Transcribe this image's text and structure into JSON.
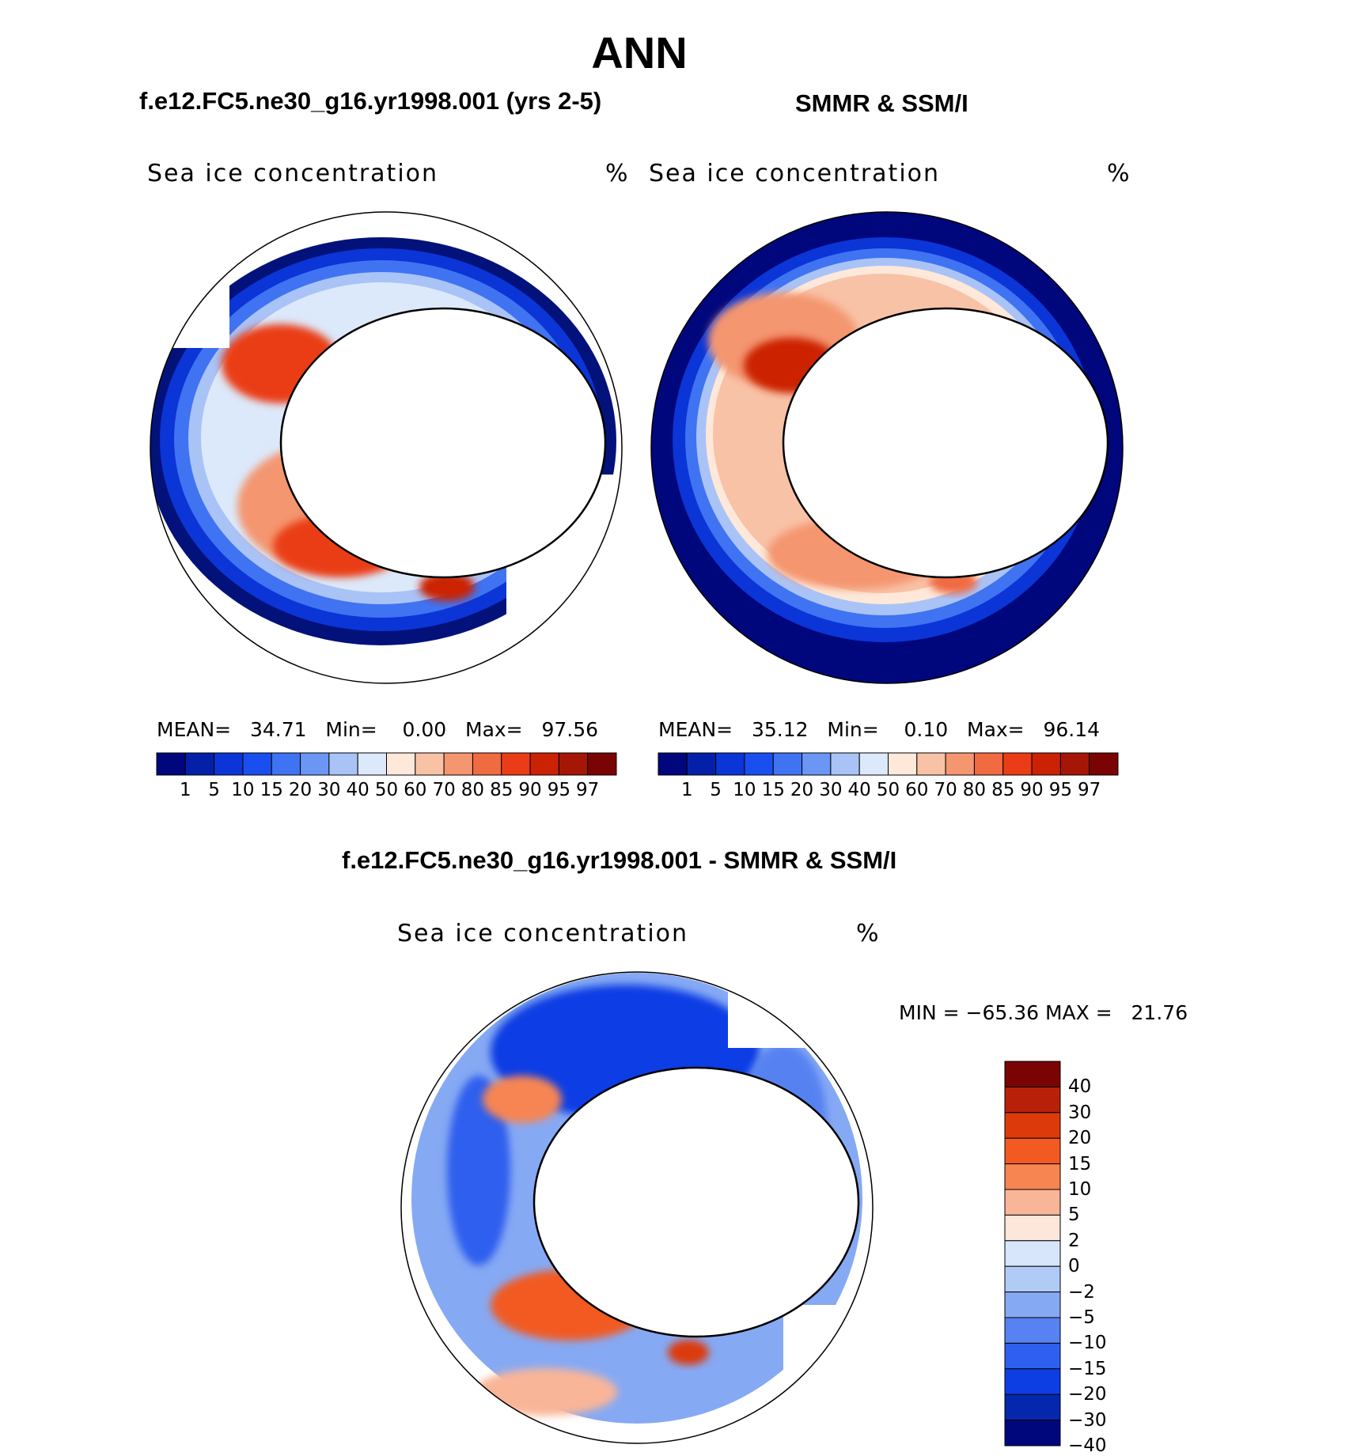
{
  "figure": {
    "title": "ANN",
    "panel_titles": {
      "model": "f.e12.FC5.ne30_g16.yr1998.001 (yrs 2-5)",
      "obs": "SMMR & SSM/I",
      "diff": "f.e12.FC5.ne30_g16.yr1998.001 - SMMR & SSM/I"
    }
  },
  "chart_data": [
    {
      "type": "heatmap",
      "projection": "south-polar-stereographic",
      "variable": "Sea ice concentration",
      "units": "%",
      "stats": {
        "mean": "34.71",
        "min": "0.00",
        "max": "97.56"
      },
      "colorbar": {
        "levels": [
          "1",
          "5",
          "10",
          "15",
          "20",
          "30",
          "40",
          "50",
          "60",
          "70",
          "80",
          "85",
          "90",
          "95",
          "97"
        ],
        "colors": [
          "#00077c",
          "#0520a8",
          "#0b35d6",
          "#1a4fef",
          "#3f73f2",
          "#6b96f4",
          "#a9c3f7",
          "#dce9fb",
          "#fde8da",
          "#f8c2a6",
          "#f4966f",
          "#f06a42",
          "#ea3d17",
          "#cc2204",
          "#a51606",
          "#7a0404"
        ]
      }
    },
    {
      "type": "heatmap",
      "projection": "south-polar-stereographic",
      "variable": "Sea ice concentration",
      "units": "%",
      "stats": {
        "mean": "35.12",
        "min": "0.10",
        "max": "96.14"
      },
      "colorbar": {
        "levels": [
          "1",
          "5",
          "10",
          "15",
          "20",
          "30",
          "40",
          "50",
          "60",
          "70",
          "80",
          "85",
          "90",
          "95",
          "97"
        ],
        "colors": [
          "#00077c",
          "#0520a8",
          "#0b35d6",
          "#1a4fef",
          "#3f73f2",
          "#6b96f4",
          "#a9c3f7",
          "#dce9fb",
          "#fde8da",
          "#f8c2a6",
          "#f4966f",
          "#f06a42",
          "#ea3d17",
          "#cc2204",
          "#a51606",
          "#7a0404"
        ]
      }
    },
    {
      "type": "heatmap",
      "projection": "south-polar-stereographic",
      "variable": "Sea ice concentration",
      "units": "%",
      "stats": {
        "min_label": "MIN =",
        "min": "−65.36",
        "max_label": "MAX =",
        "max": "21.76"
      },
      "colorbar": {
        "levels": [
          "40",
          "30",
          "20",
          "15",
          "10",
          "5",
          "2",
          "0",
          "−2",
          "−5",
          "−10",
          "−15",
          "−20",
          "−30",
          "−40"
        ],
        "colors": [
          "#7a0404",
          "#b8200a",
          "#dc3a0b",
          "#f25a22",
          "#f68552",
          "#f9b597",
          "#fde6da",
          "#d7e6fb",
          "#b1cbf7",
          "#86a9f4",
          "#5782f1",
          "#2e5fee",
          "#0d3ee4",
          "#0527ad",
          "#00077c"
        ]
      }
    }
  ]
}
